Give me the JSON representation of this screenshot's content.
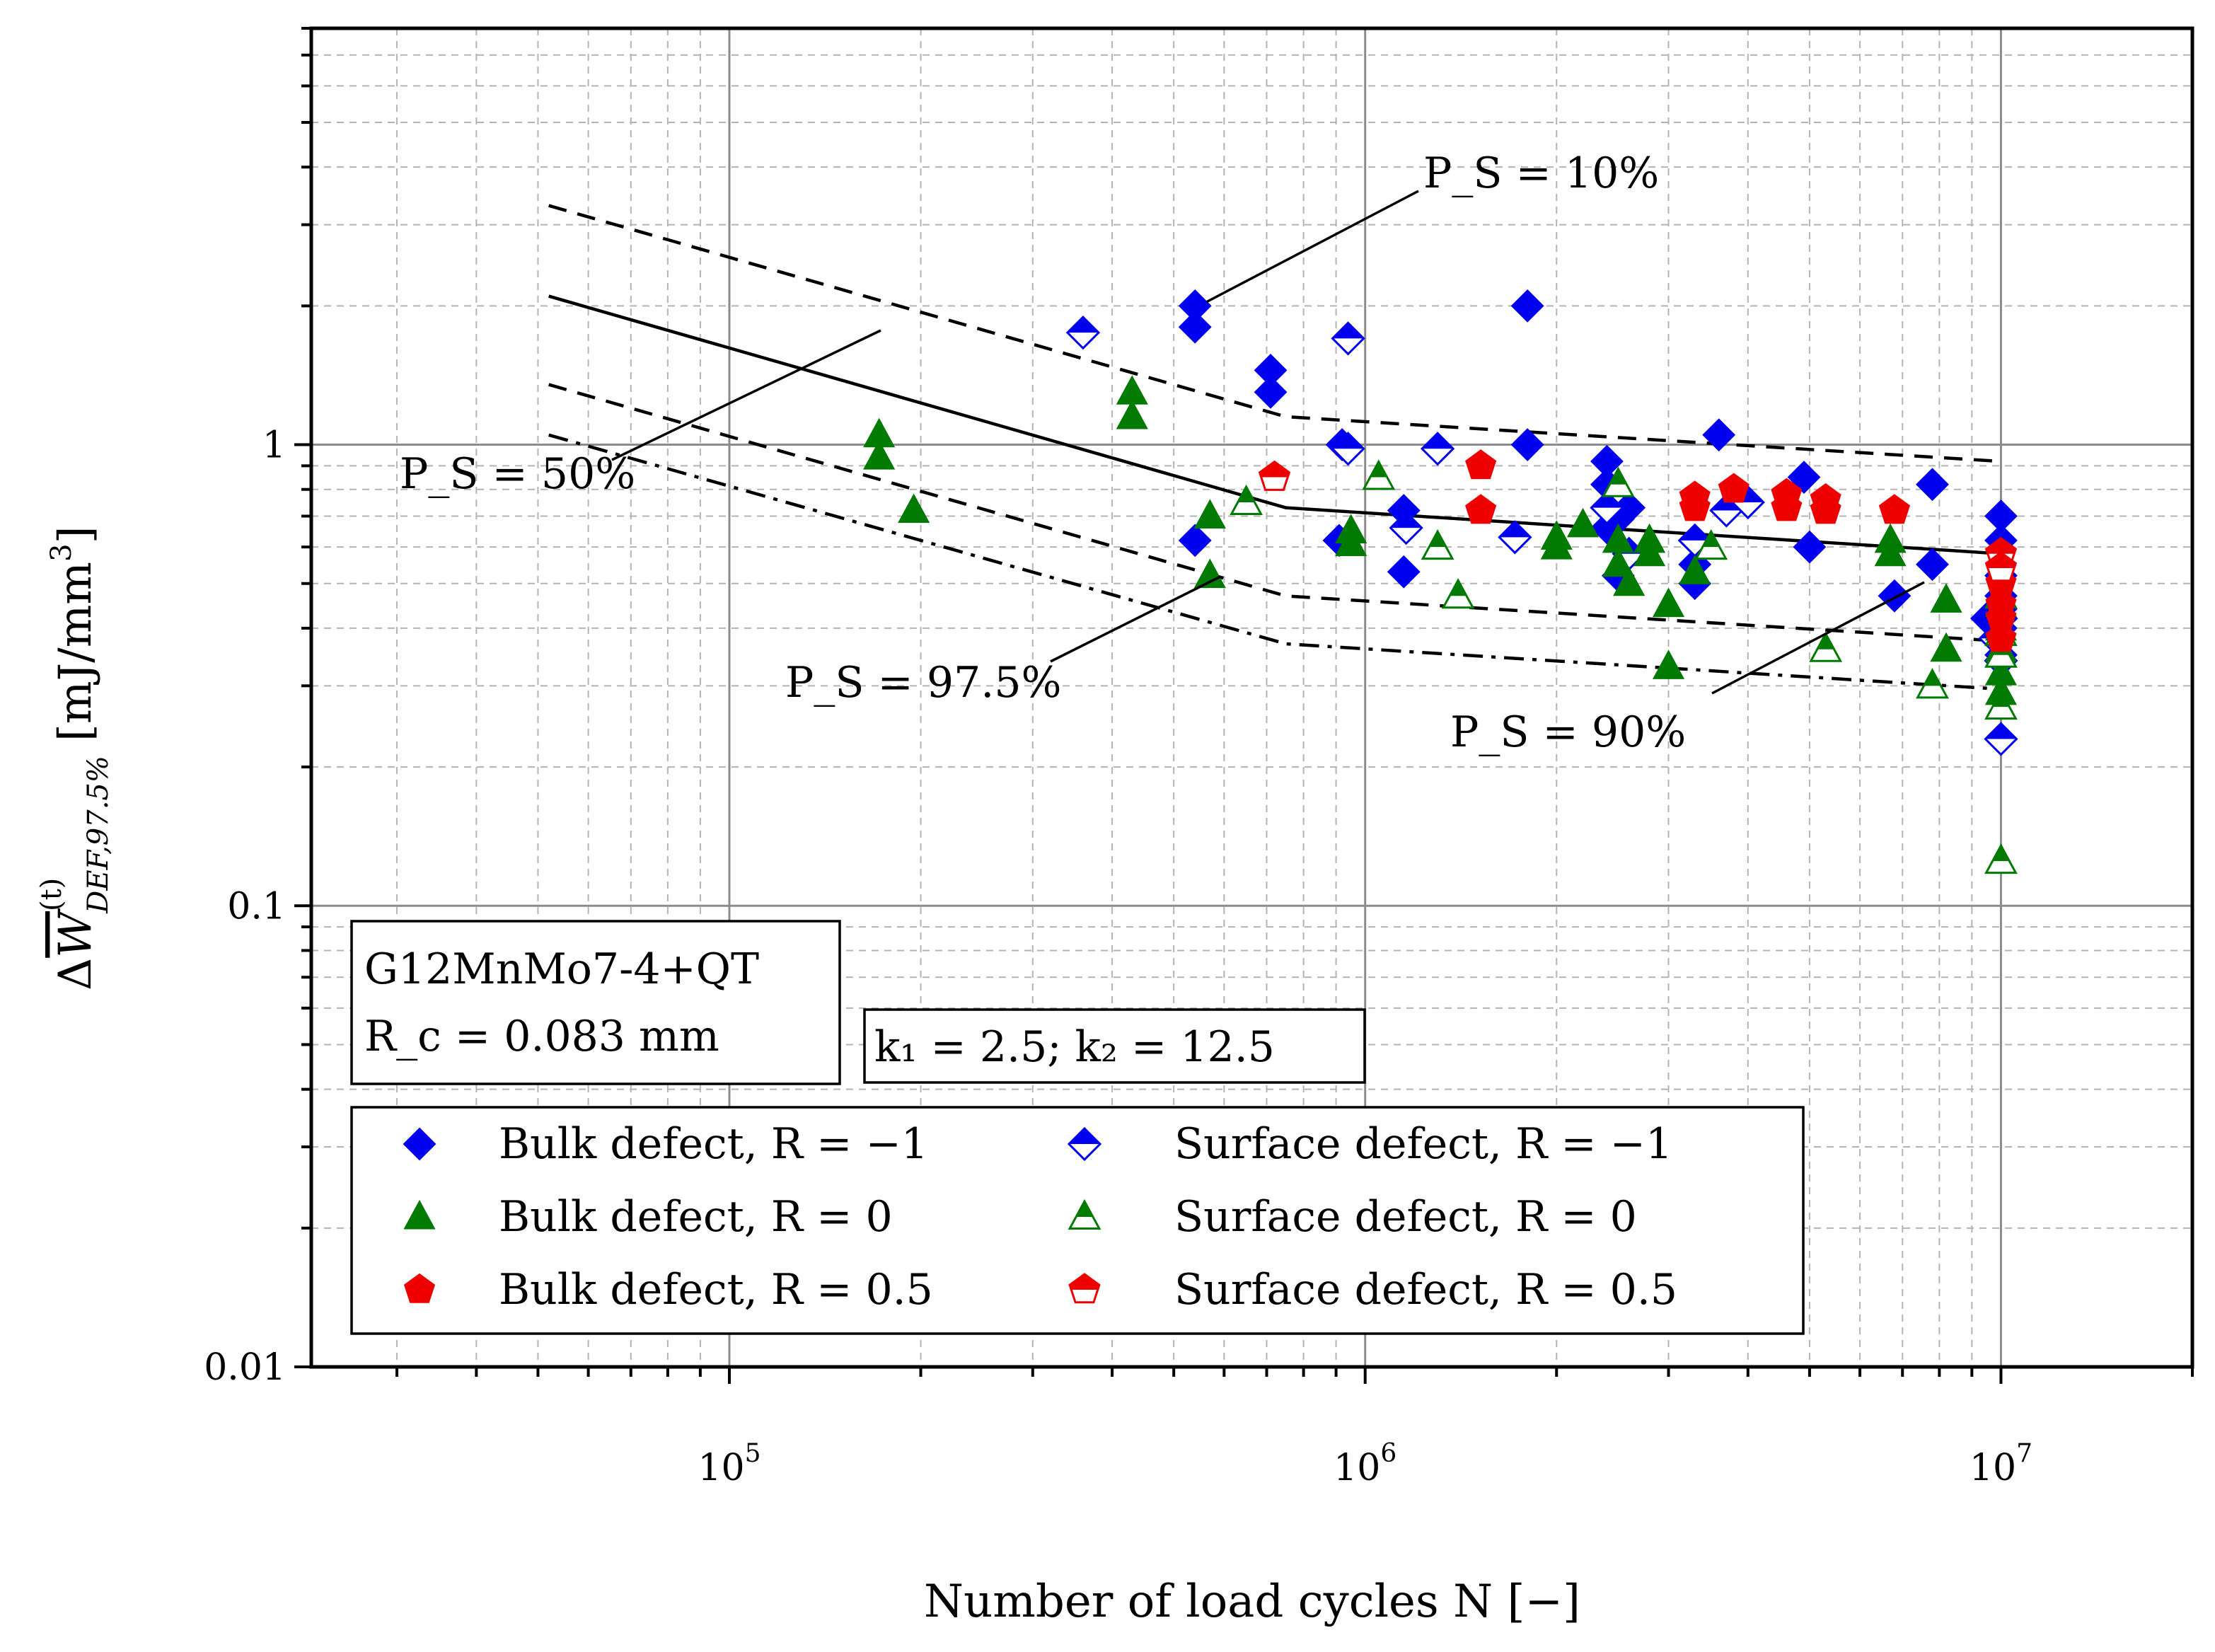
{
  "chart_data": {
    "type": "scatter",
    "title": "",
    "xlabel": "Number of load cycles N [−]",
    "ylabel": "ΔW̄(t) DEF,97.5% [mJ/mm³]",
    "xscale": "log",
    "yscale": "log",
    "xlim": [
      22000,
      20000000
    ],
    "ylim": [
      0.01,
      8
    ],
    "x_ticks": [
      {
        "value": 100000,
        "base": "10",
        "exp": "5"
      },
      {
        "value": 1000000,
        "base": "10",
        "exp": "6"
      },
      {
        "value": 10000000,
        "base": "10",
        "exp": "7"
      }
    ],
    "y_ticks": [
      {
        "value": 0.01,
        "label": "0.01"
      },
      {
        "value": 0.1,
        "label": "0.1"
      },
      {
        "value": 1,
        "label": "1"
      }
    ],
    "material_box": {
      "line1": "G12MnMo7-4+QT",
      "line2": "R_c = 0.083 mm"
    },
    "slope_box": "k₁ = 2.5;  k₂ = 12.5",
    "curves": [
      {
        "name": "P_S = 10%",
        "label": "P_S = 10%",
        "style": "dashed",
        "points": [
          [
            52000,
            3.3
          ],
          [
            750000,
            1.15
          ],
          [
            10000000,
            0.92
          ]
        ]
      },
      {
        "name": "P_S = 50%",
        "label": "P_S = 50%",
        "style": "solid",
        "points": [
          [
            52000,
            2.1
          ],
          [
            750000,
            0.73
          ],
          [
            10000000,
            0.58
          ]
        ]
      },
      {
        "name": "P_S = 90%",
        "label": "P_S = 90%",
        "style": "dashed",
        "points": [
          [
            52000,
            1.35
          ],
          [
            750000,
            0.47
          ],
          [
            10000000,
            0.375
          ]
        ]
      },
      {
        "name": "P_S = 97.5%",
        "label": "P_S = 97.5%",
        "style": "dashdot",
        "points": [
          [
            52000,
            1.05
          ],
          [
            750000,
            0.37
          ],
          [
            10000000,
            0.295
          ]
        ]
      }
    ],
    "series": [
      {
        "name": "Bulk defect, R = −1",
        "label": "Bulk defect,  R = −1",
        "marker": "diamond",
        "filled": true,
        "color": "#0000ee",
        "points": [
          [
            540000,
            2.0
          ],
          [
            540000,
            1.8
          ],
          [
            710000,
            1.45
          ],
          [
            710000,
            1.3
          ],
          [
            1800000,
            2.0
          ],
          [
            920000,
            1.0
          ],
          [
            1800000,
            1.0
          ],
          [
            540000,
            0.62
          ],
          [
            1150000,
            0.72
          ],
          [
            1150000,
            0.53
          ],
          [
            910000,
            0.62
          ],
          [
            2400000,
            0.92
          ],
          [
            2400000,
            0.82
          ],
          [
            2400000,
            0.66
          ],
          [
            2600000,
            0.73
          ],
          [
            2500000,
            0.52
          ],
          [
            2500000,
            0.69
          ],
          [
            3300000,
            0.5
          ],
          [
            3300000,
            0.55
          ],
          [
            3300000,
            0.62
          ],
          [
            3600000,
            1.05
          ],
          [
            4900000,
            0.85
          ],
          [
            5000000,
            0.6
          ],
          [
            6800000,
            0.47
          ],
          [
            7800000,
            0.82
          ],
          [
            7800000,
            0.55
          ],
          [
            10000000,
            0.7
          ],
          [
            10000000,
            0.62
          ],
          [
            10000000,
            0.52
          ],
          [
            10000000,
            0.47
          ],
          [
            10000000,
            0.44
          ],
          [
            10000000,
            0.4
          ],
          [
            10000000,
            0.35
          ],
          [
            9500000,
            0.42
          ]
        ]
      },
      {
        "name": "Surface defect, R = −1",
        "label": "Surface defect,  R = −1",
        "marker": "diamond",
        "filled": false,
        "color": "#0000ee",
        "points": [
          [
            360000,
            1.75
          ],
          [
            940000,
            1.7
          ],
          [
            940000,
            0.98
          ],
          [
            1300000,
            0.98
          ],
          [
            1160000,
            0.66
          ],
          [
            1720000,
            0.63
          ],
          [
            2400000,
            0.73
          ],
          [
            2600000,
            0.58
          ],
          [
            3300000,
            0.62
          ],
          [
            3700000,
            0.72
          ],
          [
            4000000,
            0.75
          ],
          [
            9800000,
            0.38
          ],
          [
            10000000,
            0.42
          ],
          [
            10000000,
            0.34
          ],
          [
            10000000,
            0.23
          ]
        ]
      },
      {
        "name": "Bulk defect, R = 0",
        "label": "Bulk defect,  R = 0",
        "marker": "triangle",
        "filled": true,
        "color": "#007a00",
        "points": [
          [
            172000,
            1.05
          ],
          [
            172000,
            0.94
          ],
          [
            195000,
            0.72
          ],
          [
            430000,
            1.3
          ],
          [
            430000,
            1.15
          ],
          [
            570000,
            0.7
          ],
          [
            570000,
            0.52
          ],
          [
            950000,
            0.65
          ],
          [
            950000,
            0.61
          ],
          [
            2000000,
            0.63
          ],
          [
            2000000,
            0.6
          ],
          [
            2200000,
            0.67
          ],
          [
            2500000,
            0.62
          ],
          [
            2500000,
            0.55
          ],
          [
            2600000,
            0.5
          ],
          [
            2800000,
            0.62
          ],
          [
            2800000,
            0.58
          ],
          [
            3000000,
            0.45
          ],
          [
            3000000,
            0.33
          ],
          [
            3300000,
            0.53
          ],
          [
            6700000,
            0.62
          ],
          [
            6700000,
            0.58
          ],
          [
            8200000,
            0.46
          ],
          [
            8200000,
            0.36
          ],
          [
            10000000,
            0.45
          ],
          [
            10000000,
            0.4
          ],
          [
            10000000,
            0.36
          ],
          [
            10000000,
            0.32
          ],
          [
            10000000,
            0.29
          ]
        ]
      },
      {
        "name": "Surface defect, R = 0",
        "label": "Surface defect,  R = 0",
        "marker": "triangle",
        "filled": false,
        "color": "#007a00",
        "points": [
          [
            650000,
            0.75
          ],
          [
            1050000,
            0.85
          ],
          [
            1300000,
            0.6
          ],
          [
            1400000,
            0.47
          ],
          [
            2500000,
            0.82
          ],
          [
            3500000,
            0.6
          ],
          [
            5300000,
            0.36
          ],
          [
            7800000,
            0.3
          ],
          [
            10000000,
            0.47
          ],
          [
            10000000,
            0.39
          ],
          [
            10000000,
            0.35
          ],
          [
            10000000,
            0.27
          ],
          [
            10000000,
            0.125
          ]
        ]
      },
      {
        "name": "Bulk defect, R = 0.5",
        "label": "Bulk defect,  R = 0.5",
        "marker": "pentagon",
        "filled": true,
        "color": "#ee0000",
        "points": [
          [
            1520000,
            0.9
          ],
          [
            1520000,
            0.72
          ],
          [
            3300000,
            0.77
          ],
          [
            3300000,
            0.73
          ],
          [
            3800000,
            0.8
          ],
          [
            4600000,
            0.78
          ],
          [
            4600000,
            0.73
          ],
          [
            5300000,
            0.76
          ],
          [
            5300000,
            0.72
          ],
          [
            6800000,
            0.72
          ],
          [
            10000000,
            0.5
          ],
          [
            10000000,
            0.45
          ],
          [
            10000000,
            0.42
          ],
          [
            10000000,
            0.38
          ]
        ]
      },
      {
        "name": "Surface defect, R = 0.5",
        "label": "Surface defect,  R = 0.5",
        "marker": "pentagon",
        "filled": false,
        "color": "#ee0000",
        "points": [
          [
            720000,
            0.85
          ],
          [
            10000000,
            0.58
          ],
          [
            10000000,
            0.54
          ]
        ]
      }
    ]
  }
}
